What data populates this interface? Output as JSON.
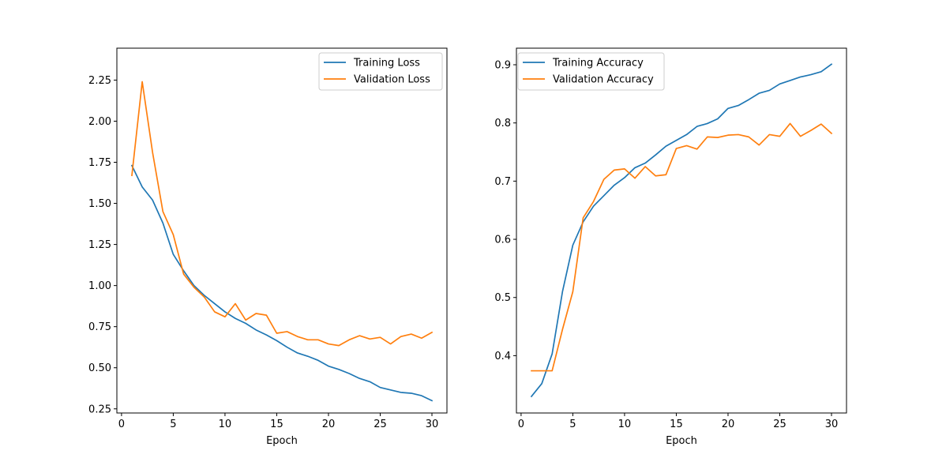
{
  "chart_data": [
    {
      "type": "line",
      "xlabel": "Epoch",
      "ylabel": "",
      "xlim": [
        -0.45,
        31.45
      ],
      "ylim": [
        0.2248,
        2.4442
      ],
      "xticks": [
        0,
        5,
        10,
        15,
        20,
        25,
        30
      ],
      "yticks": [
        0.25,
        0.5,
        0.75,
        1.0,
        1.25,
        1.5,
        1.75,
        2.0,
        2.25
      ],
      "ytick_decimals": 2,
      "legend": "top-right",
      "x": [
        1,
        2,
        3,
        4,
        5,
        6,
        7,
        8,
        9,
        10,
        11,
        12,
        13,
        14,
        15,
        16,
        17,
        18,
        19,
        20,
        21,
        22,
        23,
        24,
        25,
        26,
        27,
        28,
        29,
        30
      ],
      "series": [
        {
          "name": "Training Loss",
          "color": "#1f77b4",
          "values": [
            1.73,
            1.6,
            1.52,
            1.38,
            1.19,
            1.09,
            1.0,
            0.94,
            0.89,
            0.84,
            0.8,
            0.77,
            0.73,
            0.7,
            0.665,
            0.625,
            0.59,
            0.57,
            0.545,
            0.51,
            0.49,
            0.465,
            0.435,
            0.415,
            0.38,
            0.365,
            0.35,
            0.345,
            0.33,
            0.3
          ]
        },
        {
          "name": "Validation Loss",
          "color": "#ff7f0e",
          "values": [
            1.67,
            2.24,
            1.81,
            1.45,
            1.31,
            1.07,
            0.99,
            0.93,
            0.84,
            0.81,
            0.89,
            0.79,
            0.83,
            0.82,
            0.71,
            0.72,
            0.69,
            0.67,
            0.67,
            0.645,
            0.635,
            0.67,
            0.695,
            0.675,
            0.685,
            0.645,
            0.69,
            0.705,
            0.68,
            0.715
          ]
        }
      ]
    },
    {
      "type": "line",
      "xlabel": "Epoch",
      "ylabel": "",
      "xlim": [
        -0.45,
        31.45
      ],
      "ylim": [
        0.3015,
        0.9285
      ],
      "xticks": [
        0,
        5,
        10,
        15,
        20,
        25,
        30
      ],
      "yticks": [
        0.4,
        0.5,
        0.6,
        0.7,
        0.8,
        0.9
      ],
      "ytick_decimals": 1,
      "legend": "top-left",
      "x": [
        1,
        2,
        3,
        4,
        5,
        6,
        7,
        8,
        9,
        10,
        11,
        12,
        13,
        14,
        15,
        16,
        17,
        18,
        19,
        20,
        21,
        22,
        23,
        24,
        25,
        26,
        27,
        28,
        29,
        30
      ],
      "series": [
        {
          "name": "Training Accuracy",
          "color": "#1f77b4",
          "values": [
            0.33,
            0.352,
            0.403,
            0.51,
            0.59,
            0.63,
            0.657,
            0.675,
            0.693,
            0.706,
            0.723,
            0.731,
            0.745,
            0.76,
            0.77,
            0.78,
            0.794,
            0.799,
            0.807,
            0.825,
            0.83,
            0.84,
            0.851,
            0.856,
            0.867,
            0.873,
            0.879,
            0.883,
            0.888,
            0.901
          ]
        },
        {
          "name": "Validation Accuracy",
          "color": "#ff7f0e",
          "values": [
            0.374,
            0.374,
            0.374,
            0.445,
            0.51,
            0.637,
            0.665,
            0.703,
            0.719,
            0.721,
            0.705,
            0.725,
            0.709,
            0.711,
            0.756,
            0.761,
            0.755,
            0.776,
            0.775,
            0.779,
            0.78,
            0.776,
            0.762,
            0.78,
            0.777,
            0.799,
            0.777,
            0.787,
            0.798,
            0.782
          ]
        }
      ]
    }
  ]
}
